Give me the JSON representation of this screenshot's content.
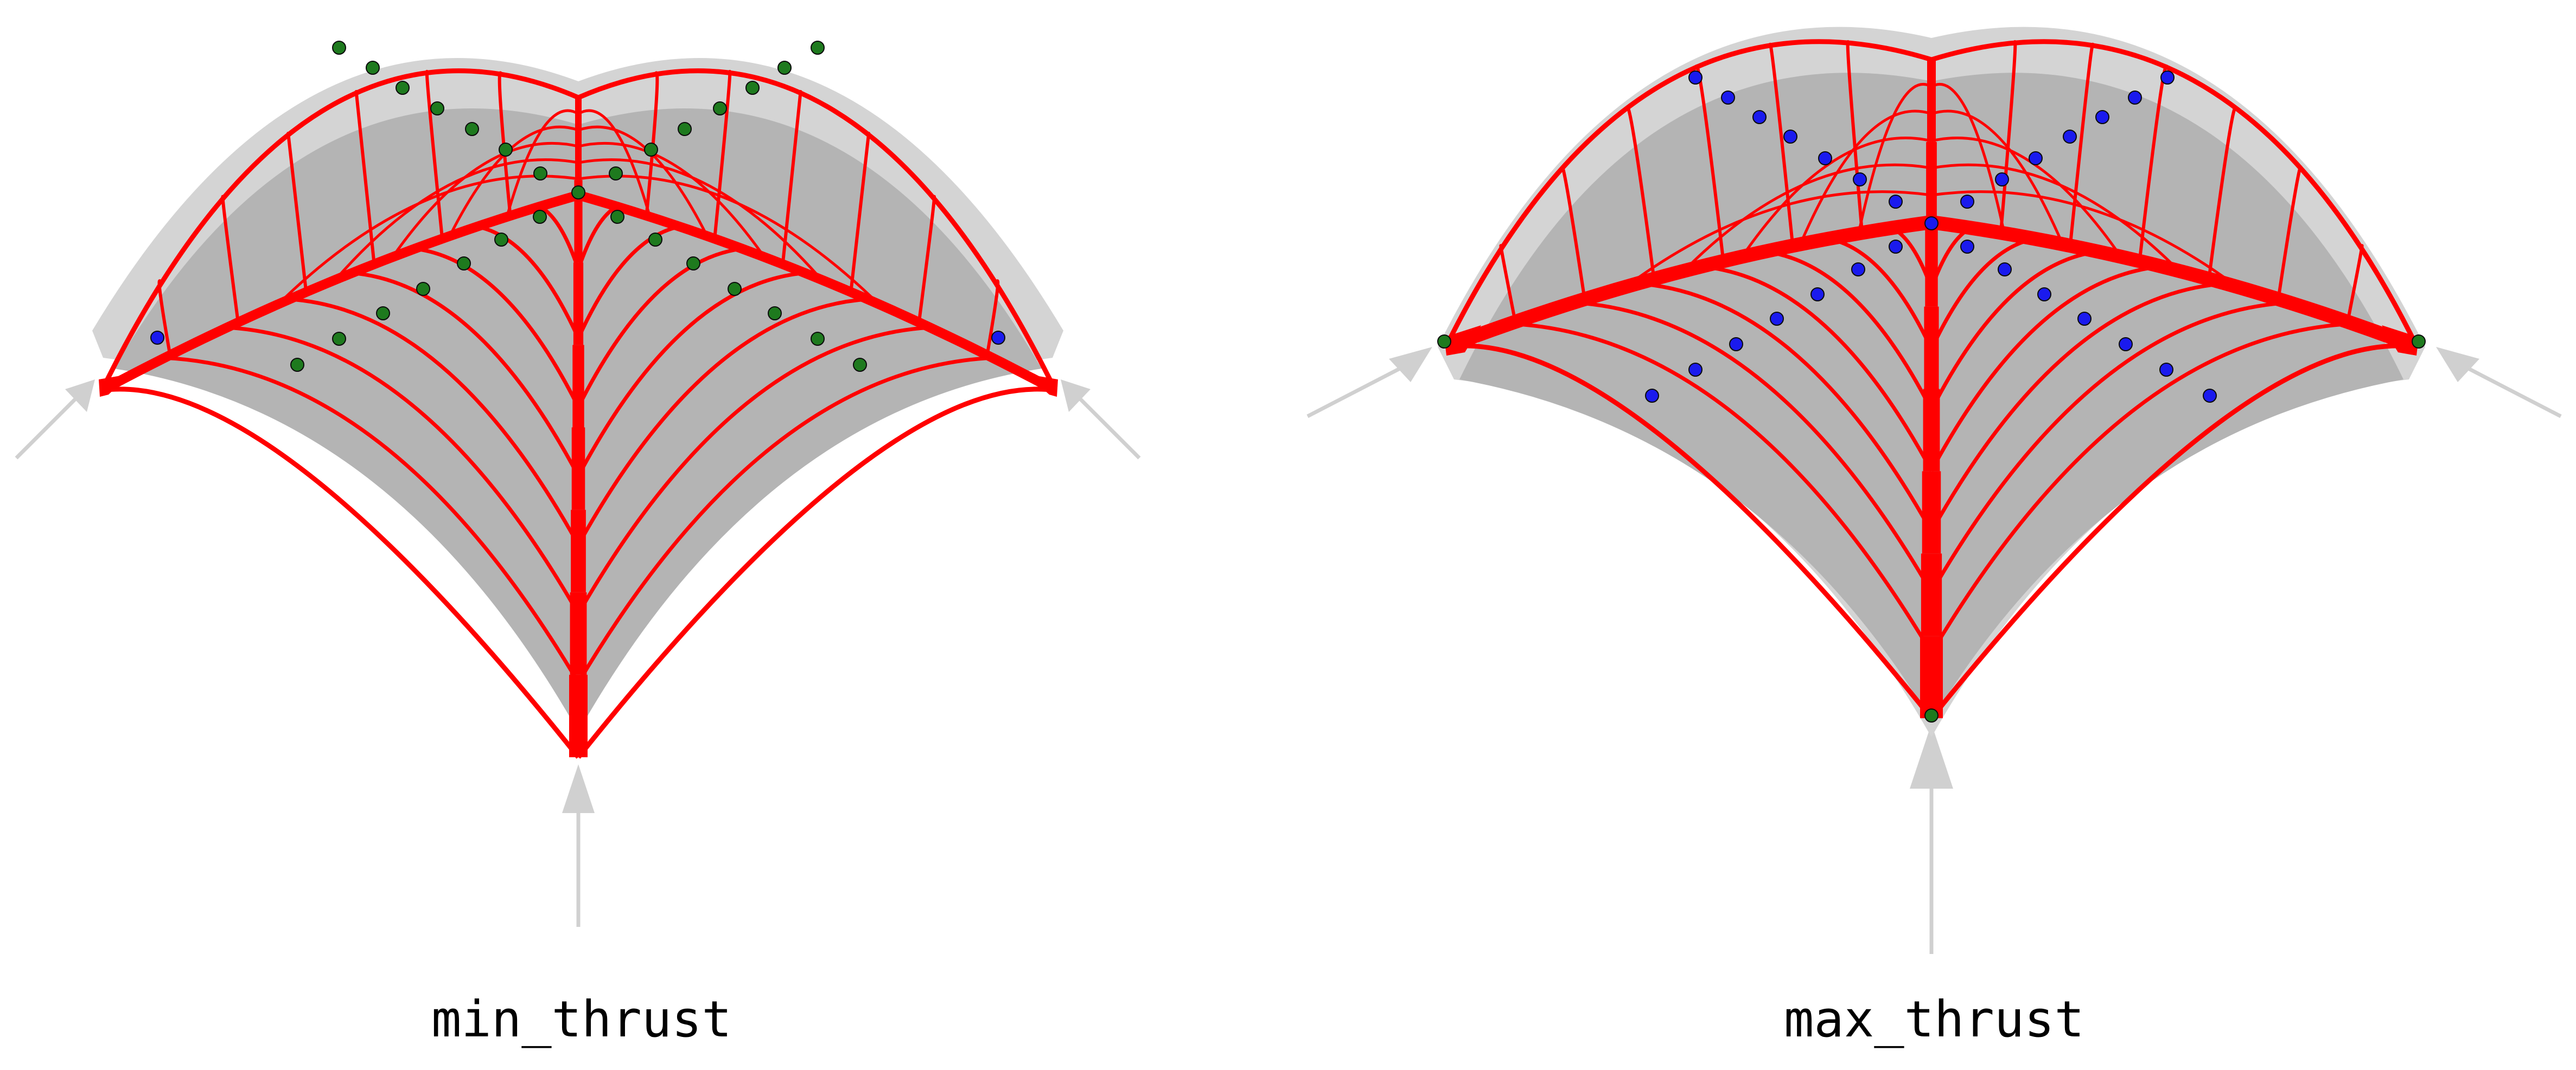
{
  "panels": [
    {
      "id": "min",
      "label": "min_thrust"
    },
    {
      "id": "max",
      "label": "max_thrust"
    }
  ],
  "colors": {
    "background": "#ffffff",
    "shell_outer": "#d4d4d4",
    "shell_inner": "#b4b4b4",
    "thrust_network": "#ff0000",
    "reaction_arrow": "#d0d0d0",
    "node_green": "#1e7a1e",
    "node_blue": "#1a1aee"
  }
}
